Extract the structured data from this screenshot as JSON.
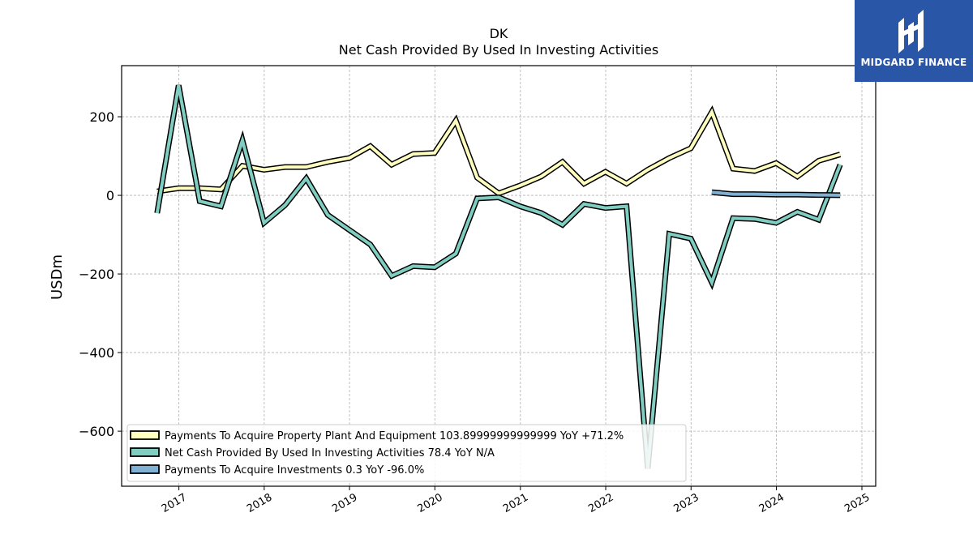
{
  "chart_data": {
    "type": "line",
    "title": "DK",
    "subtitle": "Net Cash Provided By Used In Investing Activities",
    "xlabel": "",
    "ylabel": "USDm",
    "x_tick_labels": [
      "2017",
      "2018",
      "2019",
      "2020",
      "2021",
      "2022",
      "2023",
      "2024",
      "2025"
    ],
    "y_ticks": [
      200,
      0,
      -200,
      -400,
      -600
    ],
    "y_tick_labels": [
      "200",
      "0",
      "−200",
      "−400",
      "−600"
    ],
    "ylim": [
      -740,
      330
    ],
    "xlim": [
      "2016-05-01",
      "2025-03-01"
    ],
    "grid": true,
    "legend_position": "lower-left",
    "series": [
      {
        "name": "Payments To Acquire Property Plant And Equipment",
        "legend_label": "Payments To Acquire Property Plant And Equipment  103.89999999999999 YoY +71.2%",
        "color": "#ffffbf",
        "points": [
          [
            "2016-09-30",
            10
          ],
          [
            "2016-12-31",
            18
          ],
          [
            "2017-03-31",
            18
          ],
          [
            "2017-06-30",
            15
          ],
          [
            "2017-09-30",
            75
          ],
          [
            "2017-12-31",
            65
          ],
          [
            "2018-03-31",
            72
          ],
          [
            "2018-06-30",
            72
          ],
          [
            "2018-09-30",
            85
          ],
          [
            "2018-12-31",
            95
          ],
          [
            "2019-03-31",
            125
          ],
          [
            "2019-06-30",
            78
          ],
          [
            "2019-09-30",
            105
          ],
          [
            "2019-12-31",
            108
          ],
          [
            "2020-03-31",
            190
          ],
          [
            "2020-06-30",
            45
          ],
          [
            "2020-09-30",
            5
          ],
          [
            "2020-12-31",
            25
          ],
          [
            "2021-03-31",
            48
          ],
          [
            "2021-06-30",
            85
          ],
          [
            "2021-09-30",
            30
          ],
          [
            "2021-12-31",
            60
          ],
          [
            "2022-03-31",
            30
          ],
          [
            "2022-06-30",
            65
          ],
          [
            "2022-09-30",
            95
          ],
          [
            "2022-12-31",
            120
          ],
          [
            "2023-03-31",
            212
          ],
          [
            "2023-06-30",
            68
          ],
          [
            "2023-09-30",
            62
          ],
          [
            "2023-12-31",
            82
          ],
          [
            "2024-03-31",
            48
          ],
          [
            "2024-06-30",
            88
          ],
          [
            "2024-09-30",
            104
          ]
        ]
      },
      {
        "name": "Net Cash Provided By Used In Investing Activities",
        "legend_label": "Net Cash Provided By Used In Investing Activities  78.4 YoY N/A",
        "color": "#80cdc1",
        "points": [
          [
            "2016-09-30",
            -45
          ],
          [
            "2016-12-31",
            280
          ],
          [
            "2017-03-31",
            -15
          ],
          [
            "2017-06-30",
            -28
          ],
          [
            "2017-09-30",
            140
          ],
          [
            "2017-12-31",
            -70
          ],
          [
            "2018-03-31",
            -25
          ],
          [
            "2018-06-30",
            43
          ],
          [
            "2018-09-30",
            -50
          ],
          [
            "2018-12-31",
            -88
          ],
          [
            "2019-03-31",
            -125
          ],
          [
            "2019-06-30",
            -205
          ],
          [
            "2019-09-30",
            -180
          ],
          [
            "2019-12-31",
            -183
          ],
          [
            "2020-03-31",
            -148
          ],
          [
            "2020-06-30",
            -8
          ],
          [
            "2020-09-30",
            -5
          ],
          [
            "2020-12-31",
            -28
          ],
          [
            "2021-03-31",
            -45
          ],
          [
            "2021-06-30",
            -75
          ],
          [
            "2021-09-30",
            -22
          ],
          [
            "2021-12-31",
            -32
          ],
          [
            "2022-03-31",
            -28
          ],
          [
            "2022-06-30",
            -695
          ],
          [
            "2022-09-30",
            -98
          ],
          [
            "2022-12-31",
            -110
          ],
          [
            "2023-03-31",
            -222
          ],
          [
            "2023-06-30",
            -58
          ],
          [
            "2023-09-30",
            -60
          ],
          [
            "2023-12-31",
            -70
          ],
          [
            "2024-03-31",
            -42
          ],
          [
            "2024-06-30",
            -62
          ],
          [
            "2024-09-30",
            78
          ]
        ]
      },
      {
        "name": "Payments To Acquire Investments",
        "legend_label": "Payments To Acquire Investments  0.3 YoY -96.0%",
        "color": "#80b1d3",
        "points": [
          [
            "2023-03-31",
            8
          ],
          [
            "2023-06-30",
            3
          ],
          [
            "2023-09-30",
            3
          ],
          [
            "2023-12-31",
            2
          ],
          [
            "2024-03-31",
            2
          ],
          [
            "2024-06-30",
            1
          ],
          [
            "2024-09-30",
            0.3
          ]
        ]
      }
    ]
  },
  "logo": {
    "text": "MIDGARD FINANCE",
    "bg_color": "#2a56a8"
  }
}
